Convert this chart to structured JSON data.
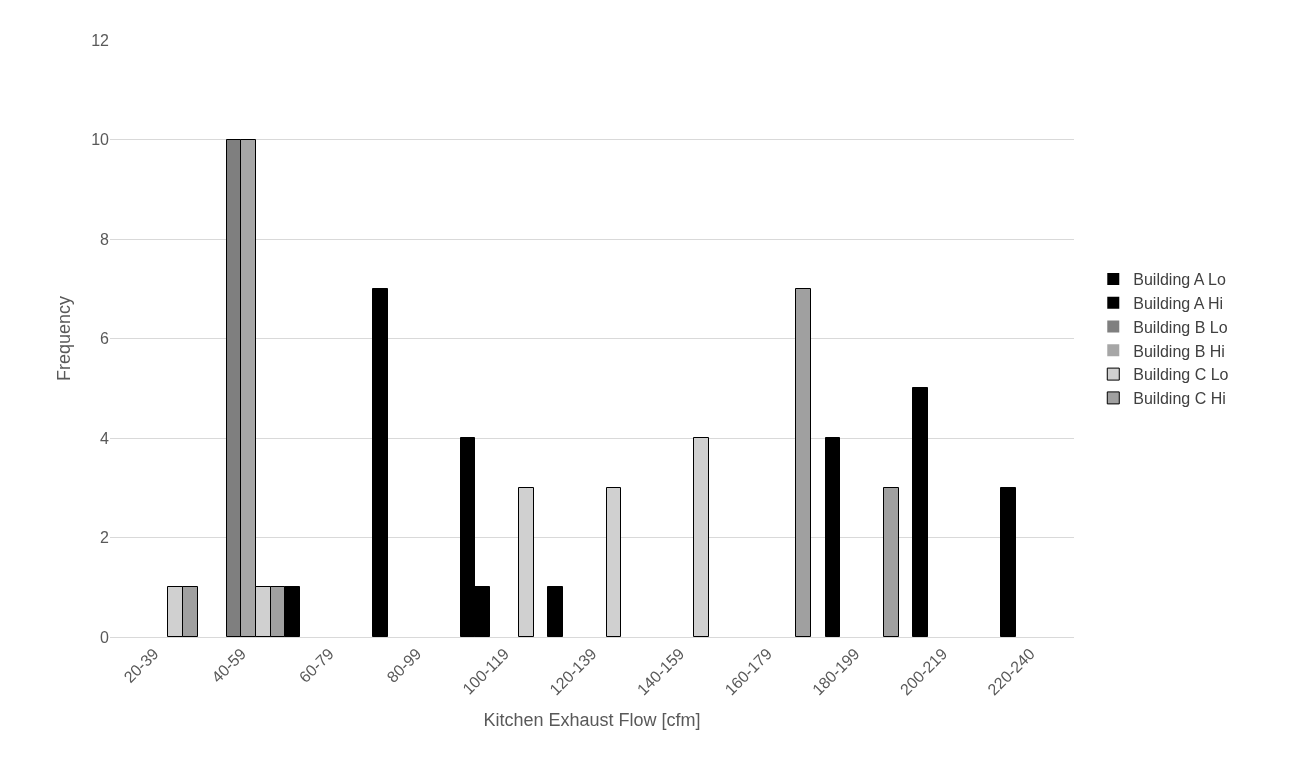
{
  "chart_data": {
    "type": "bar",
    "xlabel": "Kitchen Exhaust Flow [cfm]",
    "ylabel": "Frequency",
    "categories": [
      "20-39",
      "40-59",
      "60-79",
      "80-99",
      "100-119",
      "120-139",
      "140-159",
      "160-179",
      "180-199",
      "200-219",
      "220-240"
    ],
    "series": [
      {
        "name": "Building A Lo",
        "color": "#000000",
        "values": [
          0,
          0,
          1,
          7,
          4,
          1,
          0,
          0,
          0,
          0,
          0
        ]
      },
      {
        "name": "Building A Hi",
        "color": "#000000",
        "values": [
          0,
          0,
          0,
          0,
          1,
          0,
          0,
          0,
          4,
          5,
          3
        ]
      },
      {
        "name": "Building B Lo",
        "color": "#7f7f7f",
        "values": [
          0,
          10,
          0,
          0,
          0,
          0,
          0,
          0,
          0,
          0,
          0
        ]
      },
      {
        "name": "Building B Hi",
        "color": "#a6a6a6",
        "values": [
          0,
          10,
          0,
          0,
          0,
          0,
          0,
          0,
          0,
          0,
          0
        ]
      },
      {
        "name": "Building C Lo",
        "color": "#d0d0d0",
        "values": [
          1,
          1,
          0,
          0,
          3,
          3,
          4,
          0,
          0,
          0,
          0
        ]
      },
      {
        "name": "Building C Hi",
        "color": "#a0a0a0",
        "values": [
          1,
          1,
          0,
          0,
          0,
          0,
          0,
          7,
          3,
          0,
          0
        ]
      }
    ],
    "ylim": [
      0,
      12
    ],
    "yticks": [
      0,
      2,
      4,
      6,
      8,
      10,
      12
    ],
    "grid": "y",
    "legend": "right"
  }
}
